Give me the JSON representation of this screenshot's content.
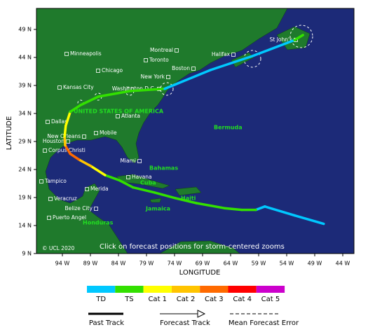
{
  "map": {
    "credit": "© UCL 2020",
    "instruction": "Click on forecast positions for storm-centered zooms",
    "x_axis": {
      "label": "LONGITUDE",
      "ticks": [
        {
          "value": -94,
          "label": "94 W"
        },
        {
          "value": -89,
          "label": "89 W"
        },
        {
          "value": -84,
          "label": "84 W"
        },
        {
          "value": -79,
          "label": "79 W"
        },
        {
          "value": -74,
          "label": "74 W"
        },
        {
          "value": -69,
          "label": "69 W"
        },
        {
          "value": -64,
          "label": "64 W"
        },
        {
          "value": -59,
          "label": "59 W"
        },
        {
          "value": -54,
          "label": "54 W"
        },
        {
          "value": -49,
          "label": "49 W"
        },
        {
          "value": -44,
          "label": "44 W"
        }
      ]
    },
    "y_axis": {
      "label": "LATITUDE",
      "ticks": [
        {
          "value": 49,
          "label": "49 N"
        },
        {
          "value": 44,
          "label": "44 N"
        },
        {
          "value": 39,
          "label": "39 N"
        },
        {
          "value": 34,
          "label": "34 N"
        },
        {
          "value": 29,
          "label": "29 N"
        },
        {
          "value": 24,
          "label": "24 N"
        },
        {
          "value": 19,
          "label": "19 N"
        },
        {
          "value": 14,
          "label": "14 N"
        },
        {
          "value": 9,
          "label": "9 N"
        }
      ]
    },
    "cities": [
      "Minneapolis",
      "Montreal",
      "Toronto",
      "Boston",
      "Chicago",
      "New York",
      "Halifax",
      "St John's",
      "Kansas City",
      "Washington D.C.",
      "Atlanta",
      "Dallas",
      "New Orleans",
      "Mobile",
      "Houston",
      "Corpus Christi",
      "Miami",
      "Havana",
      "Tampico",
      "Merida",
      "Veracruz",
      "Belize City",
      "Puerto Angel"
    ],
    "regions": [
      "UNITED STATES OF AMERICA",
      "Bermuda",
      "Bahamas",
      "Cuba",
      "Haiti",
      "Jamaica",
      "Honduras"
    ],
    "track": {
      "points": [
        {
          "lon": -47.4,
          "lat": 14.3,
          "category": 0
        },
        {
          "lon": -52.6,
          "lat": 15.8,
          "category": 0
        },
        {
          "lon": -57.9,
          "lat": 17.4,
          "category": 0
        },
        {
          "lon": -59.5,
          "lat": 16.8,
          "category": 1
        },
        {
          "lon": -62,
          "lat": 16.8,
          "category": 1
        },
        {
          "lon": -65.1,
          "lat": 17.1,
          "category": 1
        },
        {
          "lon": -70.1,
          "lat": 18,
          "category": 1
        },
        {
          "lon": -73.9,
          "lat": 18.9,
          "category": 1
        },
        {
          "lon": -77.6,
          "lat": 19.9,
          "category": 1
        },
        {
          "lon": -81.4,
          "lat": 20.8,
          "category": 1
        },
        {
          "lon": -83.9,
          "lat": 22.1,
          "category": 1
        },
        {
          "lon": -86.4,
          "lat": 23,
          "category": 2
        },
        {
          "lon": -88.9,
          "lat": 24.6,
          "category": 3
        },
        {
          "lon": -91.1,
          "lat": 25.8,
          "category": 4
        },
        {
          "lon": -92.6,
          "lat": 26.8,
          "category": 4
        },
        {
          "lon": -93.5,
          "lat": 28.3,
          "category": 3
        },
        {
          "lon": -93.6,
          "lat": 29.9,
          "category": 2
        },
        {
          "lon": -93.4,
          "lat": 31.8,
          "category": 2
        },
        {
          "lon": -92.6,
          "lat": 34.3,
          "category": 1
        },
        {
          "lon": -90.75,
          "lat": 35.5,
          "category": 1
        },
        {
          "lon": -87.6,
          "lat": 37,
          "category": 1
        },
        {
          "lon": -82,
          "lat": 38,
          "category": 1
        },
        {
          "lon": -75.75,
          "lat": 38.4,
          "category": 0
        },
        {
          "lon": -67.6,
          "lat": 41.75,
          "category": 0
        },
        {
          "lon": -60.1,
          "lat": 44.25,
          "category": 0
        },
        {
          "lon": -52.6,
          "lat": 47.1,
          "category": 1
        },
        {
          "lon": -51.1,
          "lat": 48,
          "category": 1
        }
      ]
    },
    "legend": {
      "categories": [
        {
          "label": "TD",
          "color": "#00c8ff"
        },
        {
          "label": "TS",
          "color": "#33e000"
        },
        {
          "label": "Cat 1",
          "color": "#ffff00"
        },
        {
          "label": "Cat 2",
          "color": "#ffc400"
        },
        {
          "label": "Cat 3",
          "color": "#ff6a00"
        },
        {
          "label": "Cat 4",
          "color": "#ff0000"
        },
        {
          "label": "Cat 5",
          "color": "#cc00cc"
        }
      ],
      "past_track": "Past Track",
      "forecast_track": "Forecast Track",
      "error": "Mean Forecast Error"
    }
  }
}
